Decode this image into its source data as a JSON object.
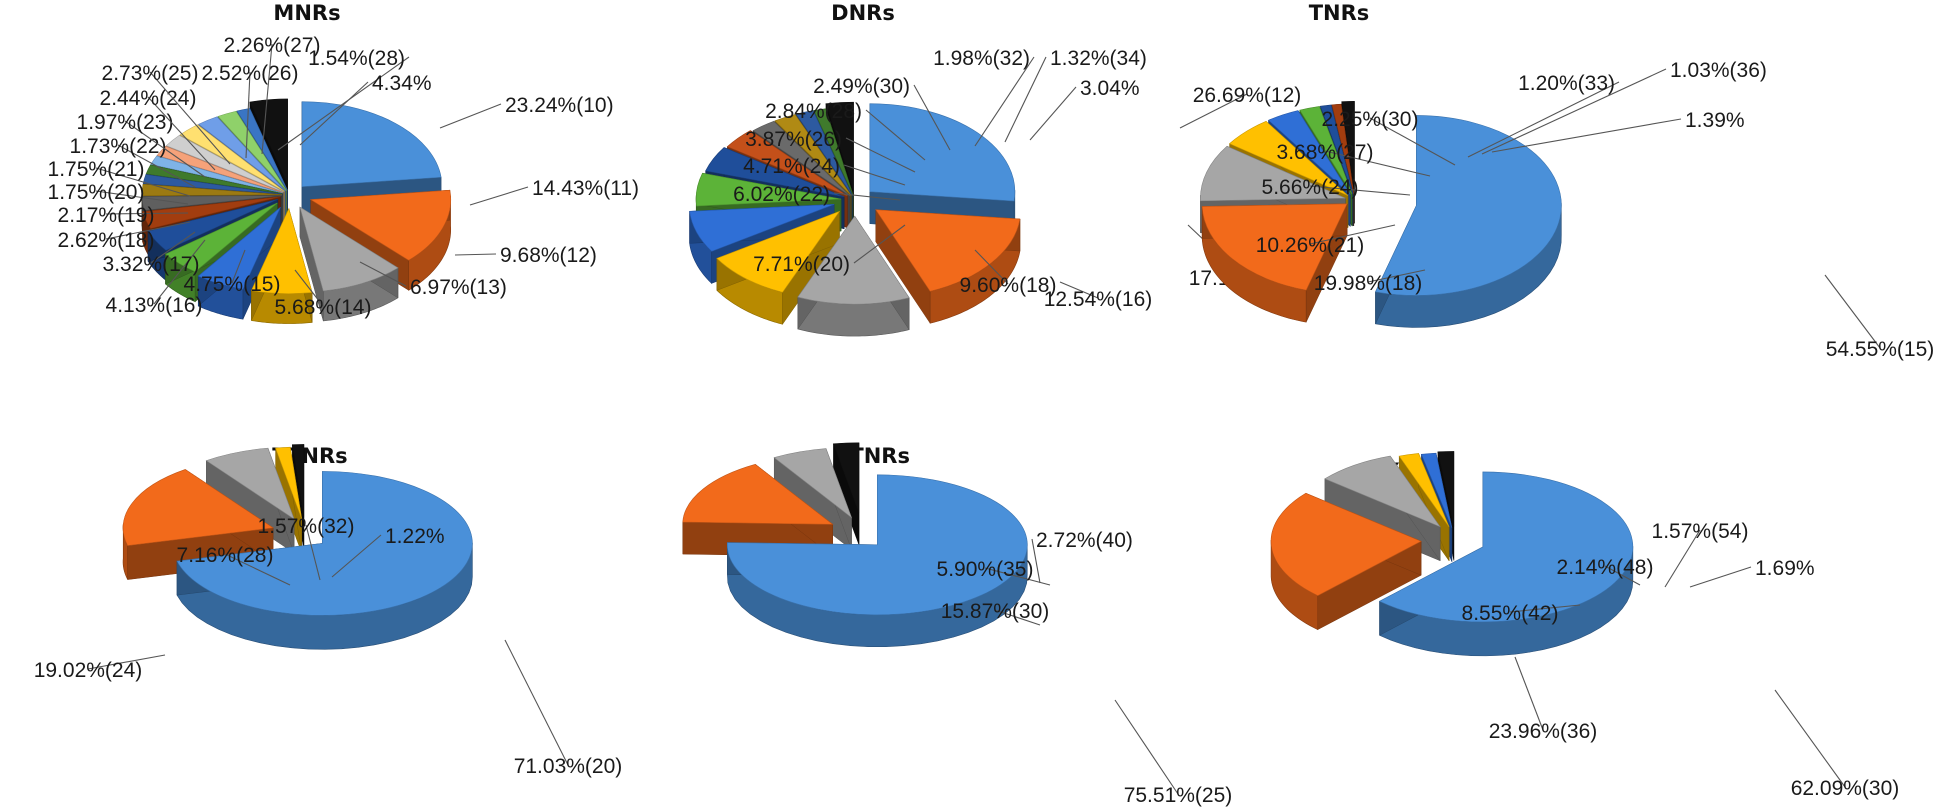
{
  "chart_data": [
    {
      "type": "pie",
      "title": "MNRs",
      "slices": [
        {
          "label": "23.24%(10)",
          "value": 23.24,
          "color": "#4a90d9"
        },
        {
          "label": "14.43%(11)",
          "value": 14.43,
          "color": "#f26a1b"
        },
        {
          "label": "9.68%(12)",
          "value": 9.68,
          "color": "#a6a6a6"
        },
        {
          "label": "6.97%(13)",
          "value": 6.97,
          "color": "#ffc000"
        },
        {
          "label": "5.68%(14)",
          "value": 5.68,
          "color": "#2f6fd6"
        },
        {
          "label": "4.75%(15)",
          "value": 4.75,
          "color": "#5cb338"
        },
        {
          "label": "4.13%(16)",
          "value": 4.13,
          "color": "#1f4e9a"
        },
        {
          "label": "3.32%(17)",
          "value": 3.32,
          "color": "#a23d0f"
        },
        {
          "label": "2.62%(18)",
          "value": 2.62,
          "color": "#5f5f5f"
        },
        {
          "label": "2.17%(19)",
          "value": 2.17,
          "color": "#9c7a12"
        },
        {
          "label": "1.75%(20)",
          "value": 1.75,
          "color": "#2d5aa0"
        },
        {
          "label": "1.75%(21)",
          "value": 1.75,
          "color": "#3f7a2c"
        },
        {
          "label": "1.73%(22)",
          "value": 1.73,
          "color": "#7fb3e6"
        },
        {
          "label": "1.97%(23)",
          "value": 1.97,
          "color": "#f5a27a"
        },
        {
          "label": "2.44%(24)",
          "value": 2.44,
          "color": "#cfcfcf"
        },
        {
          "label": "2.73%(25)",
          "value": 2.73,
          "color": "#ffe070"
        },
        {
          "label": "2.52%(26)",
          "value": 2.52,
          "color": "#6f9ee8"
        },
        {
          "label": "2.26%(27)",
          "value": 2.26,
          "color": "#8fd16a"
        },
        {
          "label": "1.54%(28)",
          "value": 1.54,
          "color": "#3a75c4"
        },
        {
          "label": "4.34%",
          "value": 4.34,
          "color": "#111111"
        }
      ]
    },
    {
      "type": "pie",
      "title": "DNRs",
      "slices": [
        {
          "label": "26.69%(12)",
          "value": 26.69,
          "color": "#4a90d9"
        },
        {
          "label": "17.19%(14)",
          "value": 17.19,
          "color": "#f26a1b"
        },
        {
          "label": "12.54%(16)",
          "value": 12.54,
          "color": "#a6a6a6"
        },
        {
          "label": "9.60%(18)",
          "value": 9.6,
          "color": "#ffc000"
        },
        {
          "label": "7.71%(20)",
          "value": 7.71,
          "color": "#2f6fd6"
        },
        {
          "label": "6.02%(22)",
          "value": 6.02,
          "color": "#5cb338"
        },
        {
          "label": "4.71%(24)",
          "value": 4.71,
          "color": "#1f4e9a"
        },
        {
          "label": "3.87%(26)",
          "value": 3.87,
          "color": "#c4501a"
        },
        {
          "label": "2.84%(28)",
          "value": 2.84,
          "color": "#6a6a6a"
        },
        {
          "label": "2.49%(30)",
          "value": 2.49,
          "color": "#b08a14"
        },
        {
          "label": "1.98%(32)",
          "value": 1.98,
          "color": "#2d5aa0"
        },
        {
          "label": "1.32%(34)",
          "value": 1.32,
          "color": "#3f7a2c"
        },
        {
          "label": "3.04%",
          "value": 3.04,
          "color": "#111111"
        }
      ]
    },
    {
      "type": "pie",
      "title": "TNRs",
      "slices": [
        {
          "label": "54.55%(15)",
          "value": 54.55,
          "color": "#4a90d9"
        },
        {
          "label": "19.98%(18)",
          "value": 19.98,
          "color": "#f26a1b"
        },
        {
          "label": "10.26%(21)",
          "value": 10.26,
          "color": "#a6a6a6"
        },
        {
          "label": "5.66%(24)",
          "value": 5.66,
          "color": "#ffc000"
        },
        {
          "label": "3.68%(27)",
          "value": 3.68,
          "color": "#2f6fd6"
        },
        {
          "label": "2.25%(30)",
          "value": 2.25,
          "color": "#5cb338"
        },
        {
          "label": "1.20%(33)",
          "value": 1.2,
          "color": "#1f4e9a"
        },
        {
          "label": "1.03%(36)",
          "value": 1.03,
          "color": "#a23d0f"
        },
        {
          "label": "1.39%",
          "value": 1.39,
          "color": "#111111"
        }
      ]
    },
    {
      "type": "pie",
      "title": "TTNRs",
      "slices": [
        {
          "label": "71.03%(20)",
          "value": 71.03,
          "color": "#4a90d9"
        },
        {
          "label": "19.02%(24)",
          "value": 19.02,
          "color": "#f26a1b"
        },
        {
          "label": "7.16%(28)",
          "value": 7.16,
          "color": "#a6a6a6"
        },
        {
          "label": "1.57%(32)",
          "value": 1.57,
          "color": "#ffc000"
        },
        {
          "label": "1.22%",
          "value": 1.22,
          "color": "#111111"
        }
      ]
    },
    {
      "type": "pie",
      "title": "PTNRs",
      "slices": [
        {
          "label": "75.51%(25)",
          "value": 75.51,
          "color": "#4a90d9"
        },
        {
          "label": "15.87%(30)",
          "value": 15.87,
          "color": "#f26a1b"
        },
        {
          "label": "5.90%(35)",
          "value": 5.9,
          "color": "#a6a6a6"
        },
        {
          "label": "2.72%(40)",
          "value": 2.72,
          "color": "#111111"
        }
      ]
    },
    {
      "type": "pie",
      "title": "HXNRs",
      "slices": [
        {
          "label": "62.09%(30)",
          "value": 62.09,
          "color": "#4a90d9"
        },
        {
          "label": "23.96%(36)",
          "value": 23.96,
          "color": "#f26a1b"
        },
        {
          "label": "8.55%(42)",
          "value": 8.55,
          "color": "#a6a6a6"
        },
        {
          "label": "2.14%(48)",
          "value": 2.14,
          "color": "#ffc000"
        },
        {
          "label": "1.57%(54)",
          "value": 1.57,
          "color": "#2f6fd6"
        },
        {
          "label": "1.69%",
          "value": 1.69,
          "color": "#111111"
        }
      ]
    }
  ]
}
